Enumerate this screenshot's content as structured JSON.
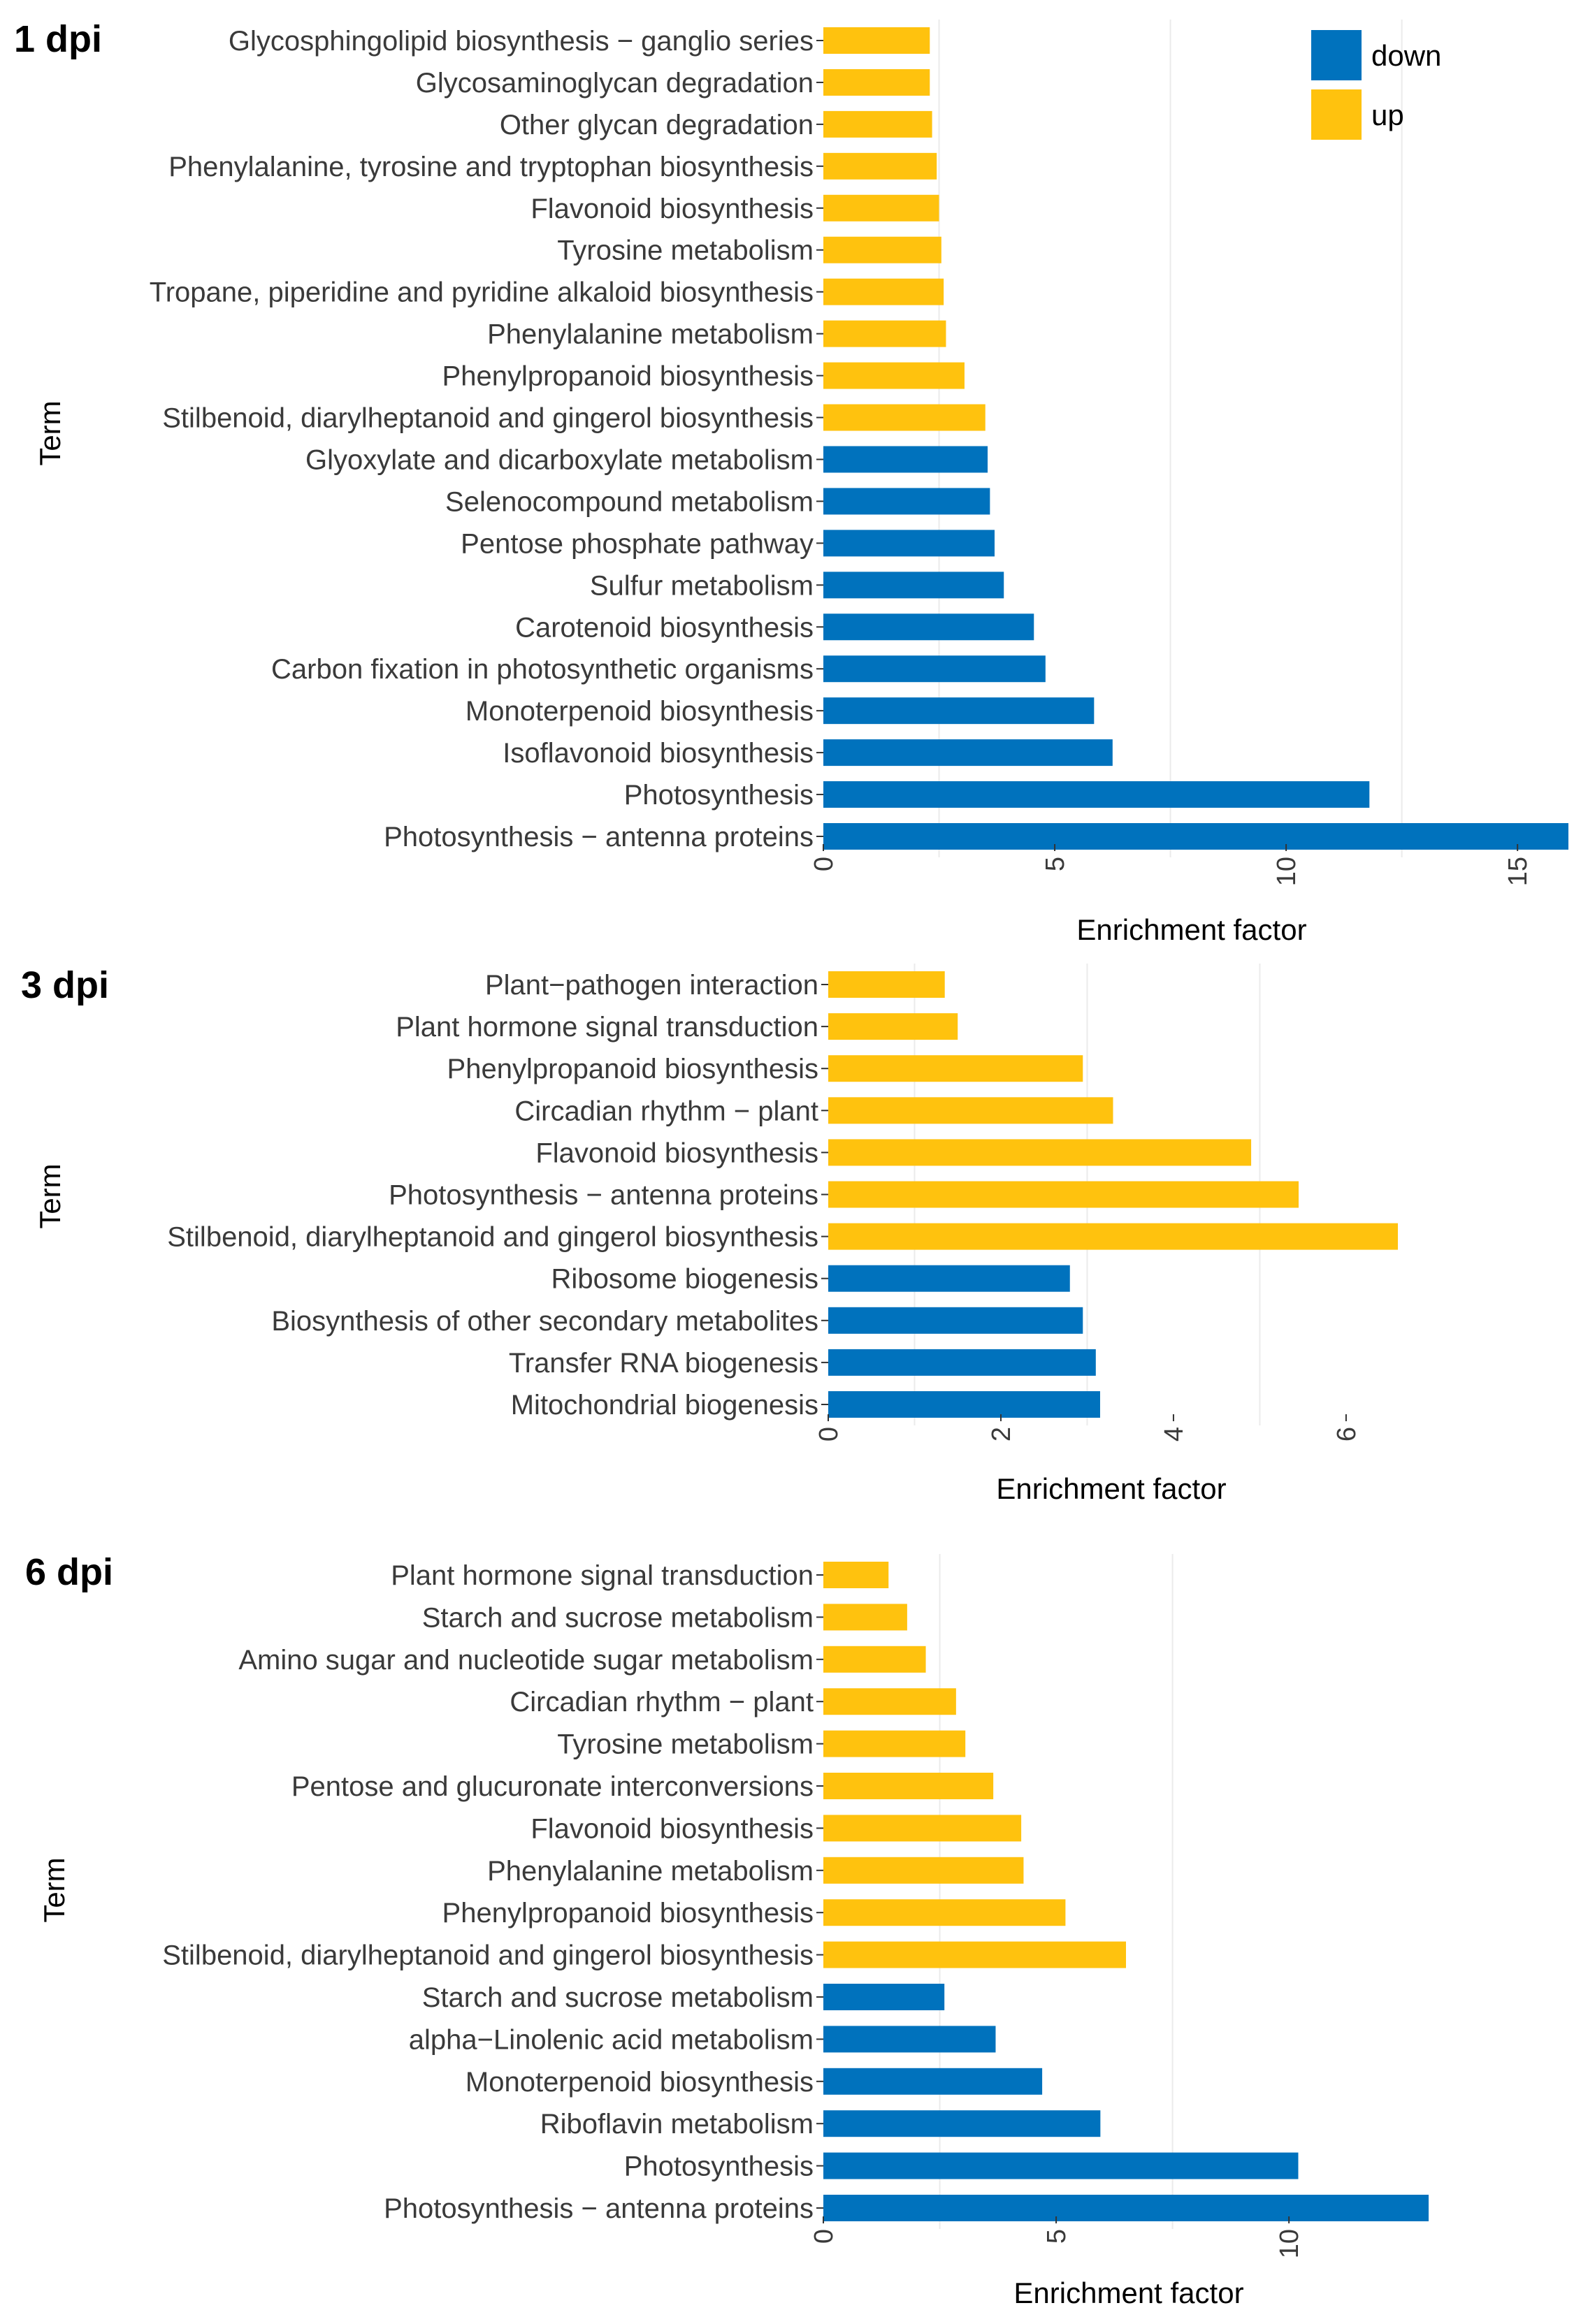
{
  "legend": {
    "entries": [
      {
        "key": "down",
        "label": "down"
      },
      {
        "key": "up",
        "label": "up"
      }
    ]
  },
  "colors": {
    "down": "#0072BD",
    "up": "#FFC20E",
    "grid": "#EBEBEB",
    "axis": "#333333"
  },
  "chart_data": [
    {
      "type": "bar",
      "orientation": "horizontal",
      "panel_label": "1 dpi",
      "title": "1 dpi",
      "ylabel": "Term",
      "xlabel": "Enrichment factor",
      "xlim": [
        0,
        16.1
      ],
      "xticks": [
        0,
        5,
        10,
        15
      ],
      "bars": [
        {
          "term": "Glycosphingolipid biosynthesis − ganglio series",
          "value": 2.3,
          "group": "up"
        },
        {
          "term": "Glycosaminoglycan degradation",
          "value": 2.3,
          "group": "up"
        },
        {
          "term": "Other glycan degradation",
          "value": 2.35,
          "group": "up"
        },
        {
          "term": "Phenylalanine, tyrosine and tryptophan biosynthesis",
          "value": 2.45,
          "group": "up"
        },
        {
          "term": "Flavonoid biosynthesis",
          "value": 2.5,
          "group": "up"
        },
        {
          "term": "Tyrosine metabolism",
          "value": 2.55,
          "group": "up"
        },
        {
          "term": "Tropane, piperidine and pyridine alkaloid biosynthesis",
          "value": 2.6,
          "group": "up"
        },
        {
          "term": "Phenylalanine metabolism",
          "value": 2.65,
          "group": "up"
        },
        {
          "term": "Phenylpropanoid biosynthesis",
          "value": 3.05,
          "group": "up"
        },
        {
          "term": "Stilbenoid, diarylheptanoid and gingerol biosynthesis",
          "value": 3.5,
          "group": "up"
        },
        {
          "term": "Glyoxylate and dicarboxylate metabolism",
          "value": 3.55,
          "group": "down"
        },
        {
          "term": "Selenocompound metabolism",
          "value": 3.6,
          "group": "down"
        },
        {
          "term": "Pentose phosphate pathway",
          "value": 3.7,
          "group": "down"
        },
        {
          "term": "Sulfur metabolism",
          "value": 3.9,
          "group": "down"
        },
        {
          "term": "Carotenoid biosynthesis",
          "value": 4.55,
          "group": "down"
        },
        {
          "term": "Carbon fixation in photosynthetic organisms",
          "value": 4.8,
          "group": "down"
        },
        {
          "term": "Monoterpenoid biosynthesis",
          "value": 5.85,
          "group": "down"
        },
        {
          "term": "Isoflavonoid biosynthesis",
          "value": 6.25,
          "group": "down"
        },
        {
          "term": "Photosynthesis",
          "value": 11.8,
          "group": "down"
        },
        {
          "term": "Photosynthesis − antenna proteins",
          "value": 16.1,
          "group": "down"
        }
      ]
    },
    {
      "type": "bar",
      "orientation": "horizontal",
      "panel_label": "3 dpi",
      "title": "3 dpi",
      "ylabel": "Term",
      "xlabel": "Enrichment factor",
      "xlim": [
        0,
        6.6
      ],
      "xticks": [
        0,
        2,
        4,
        6
      ],
      "bars": [
        {
          "term": "Plant−pathogen interaction",
          "value": 1.35,
          "group": "up"
        },
        {
          "term": "Plant hormone signal transduction",
          "value": 1.5,
          "group": "up"
        },
        {
          "term": "Phenylpropanoid biosynthesis",
          "value": 2.95,
          "group": "up"
        },
        {
          "term": "Circadian rhythm − plant",
          "value": 3.3,
          "group": "up"
        },
        {
          "term": "Flavonoid biosynthesis",
          "value": 4.9,
          "group": "up"
        },
        {
          "term": "Photosynthesis − antenna proteins",
          "value": 5.45,
          "group": "up"
        },
        {
          "term": "Stilbenoid, diarylheptanoid and gingerol biosynthesis",
          "value": 6.6,
          "group": "up"
        },
        {
          "term": "Ribosome biogenesis",
          "value": 2.8,
          "group": "down"
        },
        {
          "term": "Biosynthesis of other secondary metabolites",
          "value": 2.95,
          "group": "down"
        },
        {
          "term": "Transfer RNA biogenesis",
          "value": 3.1,
          "group": "down"
        },
        {
          "term": "Mitochondrial biogenesis",
          "value": 3.15,
          "group": "down"
        }
      ]
    },
    {
      "type": "bar",
      "orientation": "horizontal",
      "panel_label": "6 dpi",
      "title": "6 dpi",
      "ylabel": "Term",
      "xlabel": "Enrichment factor",
      "xlim": [
        0,
        13.0
      ],
      "xticks": [
        0,
        5,
        10
      ],
      "bars": [
        {
          "term": "Plant hormone signal transduction",
          "value": 1.4,
          "group": "up"
        },
        {
          "term": "Starch and sucrose metabolism",
          "value": 1.8,
          "group": "up"
        },
        {
          "term": "Amino sugar and nucleotide sugar metabolism",
          "value": 2.2,
          "group": "up"
        },
        {
          "term": "Circadian rhythm − plant",
          "value": 2.85,
          "group": "up"
        },
        {
          "term": "Tyrosine metabolism",
          "value": 3.05,
          "group": "up"
        },
        {
          "term": "Pentose and glucuronate interconversions",
          "value": 3.65,
          "group": "up"
        },
        {
          "term": "Flavonoid biosynthesis",
          "value": 4.25,
          "group": "up"
        },
        {
          "term": "Phenylalanine metabolism",
          "value": 4.3,
          "group": "up"
        },
        {
          "term": "Phenylpropanoid biosynthesis",
          "value": 5.2,
          "group": "up"
        },
        {
          "term": "Stilbenoid, diarylheptanoid and gingerol biosynthesis",
          "value": 6.5,
          "group": "up"
        },
        {
          "term": "Starch and sucrose metabolism",
          "value": 2.6,
          "group": "down"
        },
        {
          "term": "alpha−Linolenic acid metabolism",
          "value": 3.7,
          "group": "down"
        },
        {
          "term": "Monoterpenoid biosynthesis",
          "value": 4.7,
          "group": "down"
        },
        {
          "term": "Riboflavin metabolism",
          "value": 5.95,
          "group": "down"
        },
        {
          "term": "Photosynthesis",
          "value": 10.2,
          "group": "down"
        },
        {
          "term": "Photosynthesis − antenna proteins",
          "value": 13.0,
          "group": "down"
        }
      ]
    }
  ]
}
